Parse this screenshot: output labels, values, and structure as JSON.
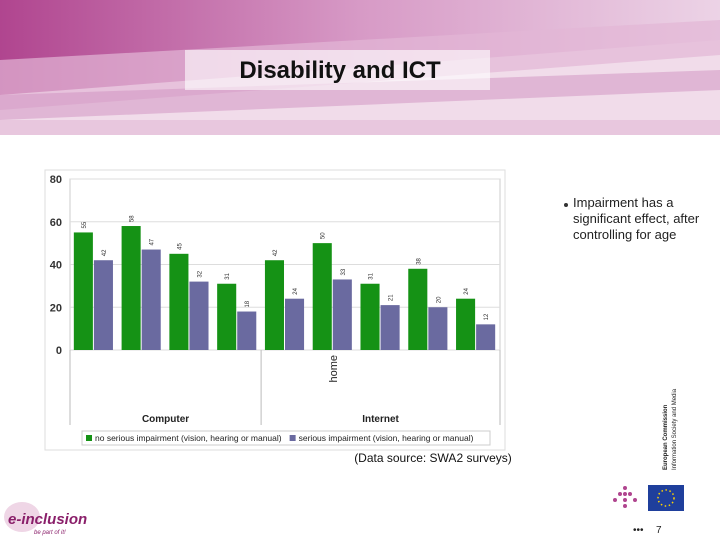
{
  "slide": {
    "title": "Disability and ICT",
    "bullet": "Impairment has a significant effect, after controlling for age",
    "source": "(Data source: SWA2 surveys)",
    "page": "7",
    "logo": "e-inclusion",
    "logo_tagline": "be part of it!",
    "ec_line1": "European Commission",
    "ec_line2": "Information Society and Media"
  },
  "chart_data": {
    "type": "bar",
    "categories": [
      null,
      null,
      null,
      null,
      null,
      "home",
      null,
      null,
      null
    ],
    "groups": [
      {
        "name": "Computer",
        "size": 4
      },
      {
        "name": "Internet",
        "size": 5
      }
    ],
    "series": [
      {
        "name": "no serious impairment (vision, hearing or manual)",
        "color": "#159215",
        "values": [
          55,
          58,
          45,
          31,
          42,
          50,
          31,
          38,
          24
        ]
      },
      {
        "name": "serious impairment (vision, hearing or manual)",
        "color": "#6a6aa0",
        "values": [
          42,
          47,
          32,
          18,
          24,
          33,
          21,
          20,
          12
        ]
      }
    ],
    "ylim": [
      0,
      80
    ],
    "yticks": [
      0,
      20,
      40,
      60,
      80
    ],
    "grid": true,
    "legend": "bottom"
  }
}
